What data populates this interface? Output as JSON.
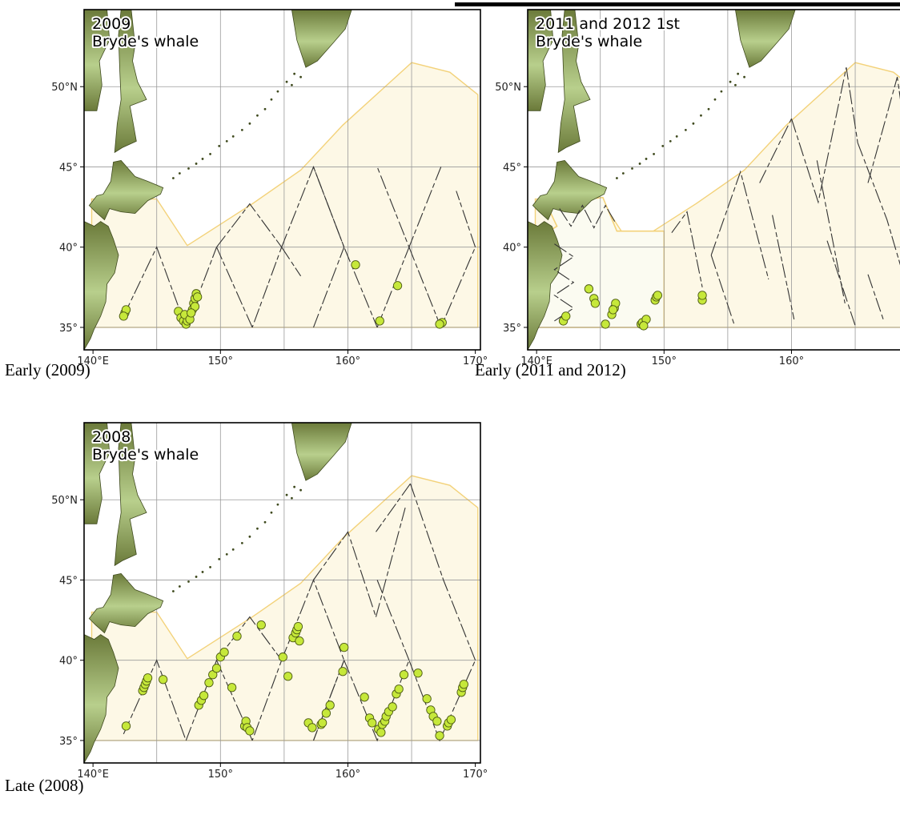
{
  "colors": {
    "ocean": "#ffffff",
    "survey_area_fill": "#fdf8e6",
    "survey_area_stroke": "#f3d27a",
    "grid": "#9a9a9a",
    "land_dark": "#6b7a3a",
    "land_light": "#b8cf8c",
    "sighting_fill": "#c6e83a",
    "sighting_stroke": "#4d5a14",
    "trackline": "#333333",
    "frame": "#000000"
  },
  "axes": {
    "lon_ticks": [
      "140°E",
      "150°",
      "160°",
      "170°"
    ],
    "lat_ticks": [
      "50°N",
      "45°",
      "40°",
      "35°"
    ],
    "lon_range": [
      139.3,
      170.4
    ],
    "lat_range": [
      33.6,
      54.8
    ]
  },
  "panels": [
    {
      "id": "early-2009",
      "title_line1": "2009",
      "title_line2": "Bryde's whale",
      "caption": "Early (2009)",
      "inner_boundary": false,
      "tracks": [
        [
          [
            142.4,
            35.7
          ],
          [
            145,
            40
          ],
          [
            147.3,
            35
          ]
        ],
        [
          [
            147.3,
            35
          ],
          [
            149.7,
            40
          ]
        ],
        [
          [
            149.7,
            40
          ],
          [
            152.3,
            42.7
          ],
          [
            154.8,
            40
          ],
          [
            152.5,
            35
          ]
        ],
        [
          [
            154.8,
            40
          ],
          [
            157.3,
            45
          ],
          [
            159.7,
            40
          ],
          [
            162.3,
            35
          ]
        ],
        [
          [
            162.3,
            35
          ],
          [
            164.8,
            40
          ],
          [
            162.3,
            45
          ]
        ],
        [
          [
            164.8,
            40
          ],
          [
            167.3,
            35
          ],
          [
            170,
            40
          ]
        ],
        [
          [
            167.3,
            45
          ],
          [
            164.8,
            40
          ]
        ],
        [
          [
            170,
            40
          ],
          [
            168.5,
            43.5
          ]
        ],
        [
          [
            157.3,
            35
          ],
          [
            159.7,
            40
          ],
          [
            157.3,
            45
          ]
        ],
        [
          [
            152.5,
            35
          ],
          [
            149.7,
            40
          ]
        ],
        [
          [
            154.8,
            40
          ],
          [
            156.3,
            38.2
          ]
        ]
      ],
      "sightings": [
        [
          142.5,
          35.9
        ],
        [
          142.6,
          36.1
        ],
        [
          142.4,
          35.7
        ],
        [
          146.7,
          36
        ],
        [
          146.9,
          35.6
        ],
        [
          147.1,
          35.4
        ],
        [
          147.3,
          35.2
        ],
        [
          147.4,
          35.4
        ],
        [
          147.2,
          35.8
        ],
        [
          147.6,
          35.5
        ],
        [
          147.8,
          36.1
        ],
        [
          147.9,
          36.5
        ],
        [
          148,
          36.8
        ],
        [
          148.1,
          37.1
        ],
        [
          148.2,
          36.9
        ],
        [
          148.0,
          36.3
        ],
        [
          147.7,
          35.9
        ],
        [
          160.6,
          38.9
        ],
        [
          163.9,
          37.6
        ],
        [
          162.5,
          35.4
        ],
        [
          167.4,
          35.3
        ],
        [
          167.2,
          35.2
        ]
      ]
    },
    {
      "id": "early-2011-2012",
      "title_line1": "2011 and 2012 1st",
      "title_line2": "Bryde's whale",
      "caption": "Early (2011 and 2012)",
      "inner_boundary": true,
      "tracks": [
        [
          [
            141.8,
            42.4
          ],
          [
            142.7,
            41.3
          ],
          [
            143.6,
            42.6
          ],
          [
            144.5,
            41.2
          ],
          [
            145.4,
            42.6
          ],
          [
            146.2,
            41.5
          ]
        ],
        [
          [
            141.4,
            40.2
          ],
          [
            142.9,
            39.4
          ],
          [
            141.4,
            38.6
          ],
          [
            142.9,
            37.8
          ],
          [
            141.4,
            37
          ],
          [
            142.9,
            36.2
          ],
          [
            141.4,
            35.4
          ]
        ],
        [
          [
            150.6,
            40.9
          ],
          [
            151.8,
            42.2
          ],
          [
            153,
            37.5
          ]
        ],
        [
          [
            153.7,
            39.5
          ],
          [
            156,
            44.7
          ],
          [
            158.2,
            38
          ]
        ],
        [
          [
            160,
            48
          ],
          [
            162.1,
            42.8
          ],
          [
            164.3,
            51.2
          ],
          [
            165.2,
            46.5
          ]
        ],
        [
          [
            157.5,
            44
          ],
          [
            160,
            48
          ]
        ],
        [
          [
            162,
            45.4
          ],
          [
            164.2,
            36.5
          ]
        ],
        [
          [
            166,
            44
          ],
          [
            168.3,
            50.6
          ],
          [
            170,
            41
          ]
        ],
        [
          [
            165.2,
            46.5
          ],
          [
            167.5,
            41.7
          ],
          [
            169.8,
            35.5
          ]
        ],
        [
          [
            153.7,
            39.5
          ],
          [
            155.5,
            35.2
          ]
        ],
        [
          [
            158.5,
            42
          ],
          [
            160.2,
            35.5
          ]
        ],
        [
          [
            162.8,
            40.4
          ],
          [
            165,
            35.1
          ]
        ],
        [
          [
            166,
            38.3
          ],
          [
            167.2,
            35.5
          ]
        ]
      ],
      "sightings": [
        [
          142.1,
          35.4
        ],
        [
          142.3,
          35.7
        ],
        [
          144.1,
          37.4
        ],
        [
          144.5,
          36.8
        ],
        [
          144.6,
          36.5
        ],
        [
          145.4,
          35.2
        ],
        [
          145.9,
          35.8
        ],
        [
          146.1,
          36.2
        ],
        [
          146.2,
          36.5
        ],
        [
          146.0,
          36.1
        ],
        [
          148.2,
          35.2
        ],
        [
          148.3,
          35.3
        ],
        [
          148.6,
          35.5
        ],
        [
          148.4,
          35.1
        ],
        [
          149.3,
          36.7
        ],
        [
          149.4,
          36.9
        ],
        [
          149.5,
          37
        ],
        [
          153,
          36.7
        ],
        [
          153,
          37
        ]
      ]
    },
    {
      "id": "late-2008",
      "title_line1": "2008",
      "title_line2": "Bryde's whale",
      "caption": "Late (2008)",
      "inner_boundary": false,
      "tracks": [
        [
          [
            142.4,
            35.4
          ],
          [
            145,
            40
          ],
          [
            147.3,
            35
          ]
        ],
        [
          [
            147.3,
            35
          ],
          [
            149.7,
            40
          ]
        ],
        [
          [
            149.7,
            40
          ],
          [
            152.3,
            42.7
          ],
          [
            154.8,
            40
          ],
          [
            152.5,
            35
          ]
        ],
        [
          [
            154.8,
            40
          ],
          [
            157.3,
            45
          ],
          [
            159.7,
            40
          ],
          [
            157.3,
            35
          ]
        ],
        [
          [
            157.3,
            45
          ],
          [
            160,
            48
          ],
          [
            162.2,
            42.7
          ]
        ],
        [
          [
            159.7,
            40
          ],
          [
            162.3,
            35
          ],
          [
            164.8,
            40
          ],
          [
            167.2,
            35
          ],
          [
            170,
            40
          ]
        ],
        [
          [
            162.3,
            45
          ],
          [
            164.8,
            40
          ]
        ],
        [
          [
            164.9,
            51
          ],
          [
            167.5,
            45
          ],
          [
            170,
            40
          ]
        ],
        [
          [
            162.2,
            42.7
          ],
          [
            164.5,
            49.5
          ]
        ],
        [
          [
            164.9,
            51
          ],
          [
            162.2,
            48
          ]
        ],
        [
          [
            152.5,
            35
          ],
          [
            149.7,
            40
          ]
        ],
        [
          [
            159.7,
            40
          ],
          [
            157.3,
            35
          ]
        ]
      ],
      "sightings": [
        [
          142.6,
          35.9
        ],
        [
          143.9,
          38.1
        ],
        [
          144,
          38.3
        ],
        [
          144.1,
          38.5
        ],
        [
          144.2,
          38.7
        ],
        [
          144.3,
          38.9
        ],
        [
          145.5,
          38.8
        ],
        [
          148.3,
          37.2
        ],
        [
          148.5,
          37.5
        ],
        [
          148.7,
          37.8
        ],
        [
          149.1,
          38.6
        ],
        [
          149.4,
          39.1
        ],
        [
          149.7,
          39.5
        ],
        [
          150,
          40.2
        ],
        [
          150.3,
          40.5
        ],
        [
          150.9,
          38.3
        ],
        [
          151.3,
          41.5
        ],
        [
          151.9,
          35.9
        ],
        [
          152,
          36.2
        ],
        [
          152.1,
          35.8
        ],
        [
          152.3,
          35.6
        ],
        [
          153.2,
          42.2
        ],
        [
          154.9,
          40.2
        ],
        [
          155.3,
          39
        ],
        [
          155.7,
          41.4
        ],
        [
          155.9,
          41.7
        ],
        [
          156,
          41.9
        ],
        [
          156.1,
          42.1
        ],
        [
          156.2,
          41.2
        ],
        [
          156.9,
          36.1
        ],
        [
          157.2,
          35.8
        ],
        [
          157.9,
          36
        ],
        [
          158,
          36.1
        ],
        [
          158.3,
          36.7
        ],
        [
          158.6,
          37.2
        ],
        [
          159.6,
          39.3
        ],
        [
          159.7,
          40.8
        ],
        [
          161.3,
          37.7
        ],
        [
          161.7,
          36.4
        ],
        [
          161.9,
          36.1
        ],
        [
          162.4,
          35.7
        ],
        [
          162.6,
          35.5
        ],
        [
          162.7,
          36
        ],
        [
          162.9,
          36.2
        ],
        [
          163,
          36.5
        ],
        [
          163.2,
          36.8
        ],
        [
          163.5,
          37.1
        ],
        [
          163.8,
          37.9
        ],
        [
          164,
          38.2
        ],
        [
          164.4,
          39.1
        ],
        [
          165.5,
          39.2
        ],
        [
          166.2,
          37.6
        ],
        [
          166.5,
          36.9
        ],
        [
          166.7,
          36.5
        ],
        [
          167,
          36.2
        ],
        [
          167.2,
          35.3
        ],
        [
          167.8,
          35.9
        ],
        [
          167.9,
          36.1
        ],
        [
          168.1,
          36.3
        ],
        [
          168.9,
          38
        ],
        [
          169,
          38.3
        ],
        [
          169.1,
          38.5
        ]
      ]
    }
  ]
}
